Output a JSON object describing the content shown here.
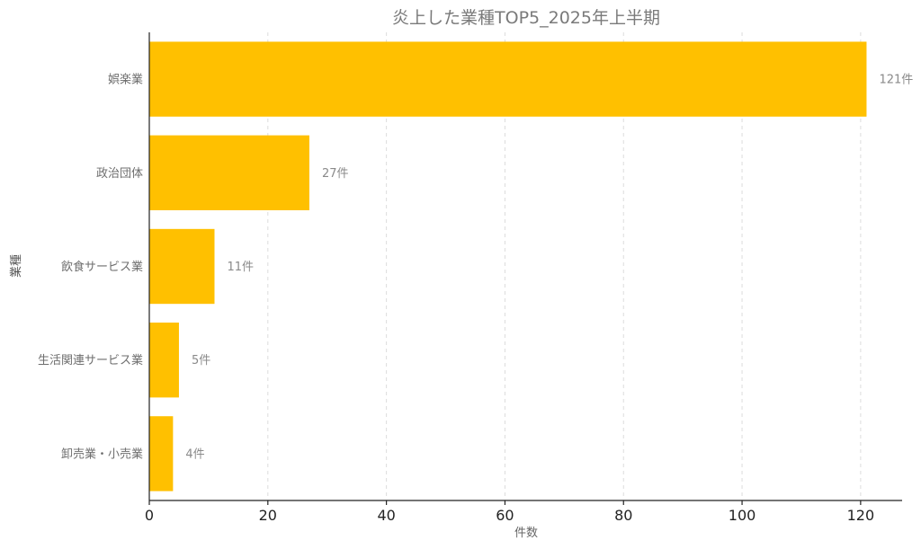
{
  "chart_data": {
    "type": "bar",
    "orientation": "horizontal",
    "title": "炎上した業種TOP5_2025年上半期",
    "xlabel": "件数",
    "ylabel": "業種",
    "categories": [
      "娯楽業",
      "政治団体",
      "飲食サービス業",
      "生活関連サービス業",
      "卸売業・小売業"
    ],
    "values": [
      121,
      27,
      11,
      5,
      4
    ],
    "data_labels": [
      "121件",
      "27件",
      "11件",
      "5件",
      "4件"
    ],
    "xlim": [
      0,
      127
    ],
    "xticks": [
      0,
      20,
      40,
      60,
      80,
      100,
      120
    ],
    "grid": "x-dashed",
    "legend": "none",
    "bar_color": "#FFC000"
  }
}
